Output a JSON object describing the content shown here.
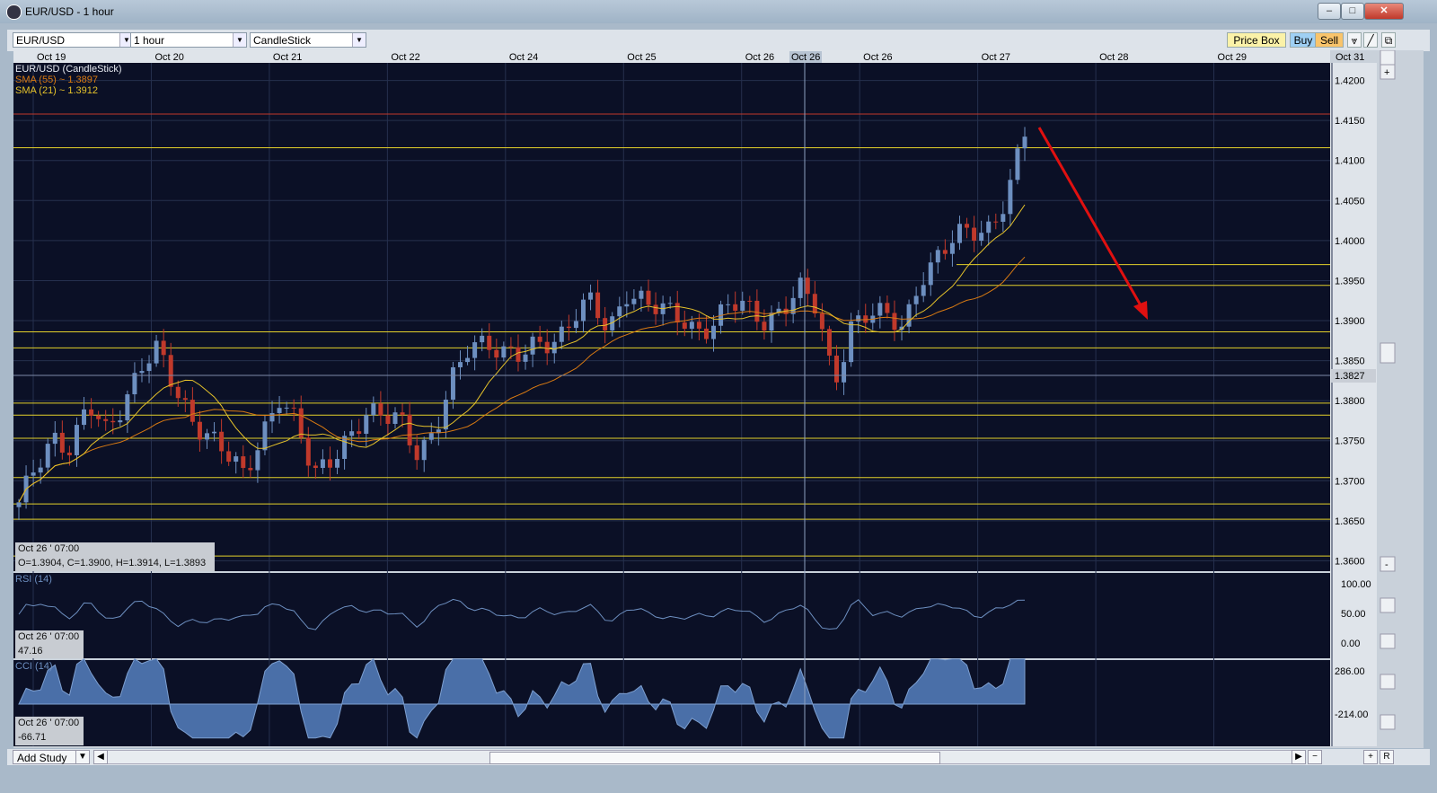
{
  "window": {
    "title": "EUR/USD - 1 hour",
    "minimize": "–",
    "maximize": "□",
    "close": "✕"
  },
  "toolbar": {
    "symbol": "EUR/USD",
    "timeframe": "1 hour",
    "chart_type": "CandleStick",
    "price_box": "Price Box",
    "buy": "Buy",
    "sell": "Sell"
  },
  "legend": {
    "main": "EUR/USD (CandleStick)",
    "sma55": "SMA (55) ~ 1.3897",
    "sma21": "SMA (21) ~ 1.3912"
  },
  "crosshair": {
    "date_label": "Oct 26",
    "price_label": "1.3827",
    "main_time": "Oct 26 ' 07:00",
    "main_ohlc": "O=1.3904, C=1.3900, H=1.3914, L=1.3893",
    "rsi_time": "Oct 26 ' 07:00",
    "rsi_value": "47.16",
    "cci_time": "Oct 26 ' 07:00",
    "cci_value": "-66.71"
  },
  "panels": {
    "rsi_label": "RSI (14)",
    "cci_label": "CCI (14)"
  },
  "bottom": {
    "add_study": "Add Study"
  },
  "colors": {
    "background": "#0b1026",
    "grid": "#26304e",
    "sma55": "#d97a12",
    "sma21": "#e5c22a",
    "hline": "#e3d02a",
    "up": "#6d8fc0",
    "down": "#c0392b",
    "arrow": "#e01010",
    "indicator": "#6d8fc0"
  },
  "chart_data": [
    {
      "type": "candlestick",
      "title": "EUR/USD (CandleStick)",
      "x_labels": [
        "Oct 19",
        "Oct 20",
        "Oct 21",
        "Oct 22",
        "Oct 24",
        "Oct 25",
        "Oct 26",
        "Oct 26",
        "Oct 27",
        "Oct 28",
        "Oct 29",
        "Oct 31"
      ],
      "y_ticks": [
        "1.4200",
        "1.4150",
        "1.4100",
        "1.4050",
        "1.4000",
        "1.3950",
        "1.3900",
        "1.3850",
        "1.3800",
        "1.3750",
        "1.3700",
        "1.3650",
        "1.3600"
      ],
      "ylim": [
        1.3587,
        1.4222
      ],
      "grid": true,
      "series": [
        {
          "name": "SMA (55)",
          "value": 1.3897
        },
        {
          "name": "SMA (21)",
          "value": 1.3912
        }
      ],
      "close_path": [
        1.3665,
        1.372,
        1.376,
        1.374,
        1.379,
        1.376,
        1.38,
        1.3845,
        1.386,
        1.381,
        1.378,
        1.376,
        1.373,
        1.37,
        1.376,
        1.381,
        1.377,
        1.37,
        1.373,
        1.376,
        1.378,
        1.3775,
        1.378,
        1.374,
        1.376,
        1.382,
        1.387,
        1.388,
        1.386,
        1.385,
        1.387,
        1.388,
        1.391,
        1.392,
        1.388,
        1.394,
        1.393,
        1.391,
        1.39,
        1.389,
        1.39,
        1.392,
        1.391,
        1.39,
        1.392,
        1.394,
        1.391,
        1.382,
        1.39,
        1.391,
        1.39,
        1.389,
        1.396,
        1.398,
        1.4,
        1.401,
        1.402,
        1.406,
        1.413
      ],
      "horizontal_levels": [
        1.4158,
        1.4116,
        1.397,
        1.3944,
        1.3886,
        1.3866,
        1.3797,
        1.3782,
        1.3753,
        1.3704,
        1.3671,
        1.3652,
        1.3606
      ]
    },
    {
      "type": "line",
      "title": "RSI (14)",
      "y_ticks": [
        "100.00",
        "50.00",
        "0.00"
      ],
      "current": 47.16
    },
    {
      "type": "area",
      "title": "CCI (14)",
      "y_ticks": [
        "286.00",
        "-214.00"
      ],
      "current": -66.71
    }
  ]
}
